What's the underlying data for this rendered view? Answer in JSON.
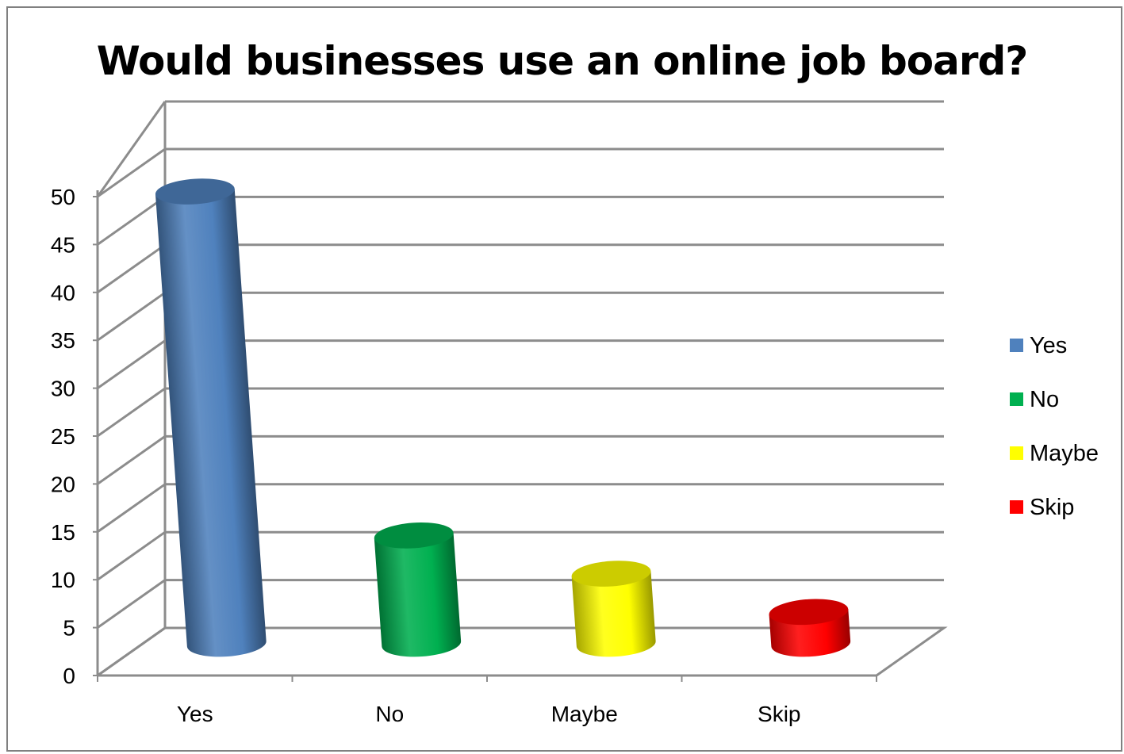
{
  "chart_data": {
    "type": "bar",
    "title": "Would businesses use an online job board?",
    "categories": [
      "Yes",
      "No",
      "Maybe",
      "Skip"
    ],
    "values": [
      48,
      12,
      8,
      4
    ],
    "ylim": [
      0,
      50
    ],
    "yticks": [
      0,
      5,
      10,
      15,
      20,
      25,
      30,
      35,
      40,
      45,
      50
    ],
    "grid": true,
    "legend_position": "right",
    "legend": [
      "Yes",
      "No",
      "Maybe",
      "Skip"
    ],
    "colors": [
      "#4f81bd",
      "#00b050",
      "#ffff00",
      "#ff0000"
    ],
    "bar_style": "3d-cylinder"
  }
}
